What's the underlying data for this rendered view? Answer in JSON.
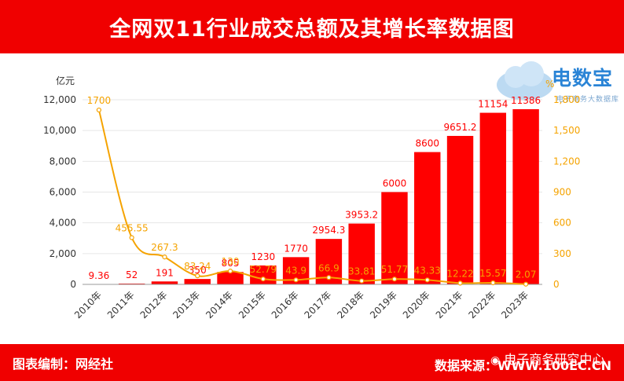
{
  "header": {
    "title": "全网双11行业成交总额及其增长率数据图"
  },
  "footer": {
    "left": "图表编制：网经社",
    "right": "数据来源：WWW.100EC.CN",
    "wechat": "电子商务研究中心"
  },
  "logo": {
    "name": "电数宝",
    "sub": "电子商务大数据库"
  },
  "colors": {
    "bar": "#ff0000",
    "line": "#f5a300",
    "banner": "#f00000"
  },
  "chart_data": {
    "type": "bar",
    "categories": [
      "2010年",
      "2011年",
      "2012年",
      "2013年",
      "2014年",
      "2015年",
      "2016年",
      "2017年",
      "2018年",
      "2019年",
      "2020年",
      "2021年",
      "2022年",
      "2023年"
    ],
    "series": [
      {
        "values": [
          9.36,
          52,
          191,
          350,
          805,
          1230,
          1770,
          2954.3,
          3953.2,
          6000,
          8600,
          9651.2,
          11154,
          11386
        ],
        "labels": [
          "9.36",
          "52",
          "191",
          "350",
          "805",
          "1230",
          "1770",
          "2954.3",
          "3953.2",
          "6000",
          "8600",
          "9651.2",
          "11154",
          "11386"
        ]
      },
      {
        "type": "line",
        "values": [
          1700,
          455.55,
          267.3,
          83.24,
          130,
          52.79,
          43.9,
          66.9,
          33.81,
          51.77,
          43.33,
          12.22,
          15.57,
          2.07
        ],
        "labels": [
          "1700",
          "455.55",
          "267.3",
          "83.24",
          "130",
          "52.79",
          "43.9",
          "66.9",
          "33.81",
          "51.77",
          "43.33",
          "12.22",
          "15.57",
          "2.07"
        ]
      }
    ],
    "ylabel": "亿元",
    "y2label": "%",
    "ylim": [
      0,
      12000
    ],
    "y2lim": [
      0,
      1800
    ],
    "yticks": [
      "0",
      "2,000",
      "4,000",
      "6,000",
      "8,000",
      "10,000",
      "12,000"
    ],
    "y2ticks": [
      "0",
      "300",
      "600",
      "900",
      "1,200",
      "1,500",
      "1,800"
    ],
    "grid": true
  }
}
